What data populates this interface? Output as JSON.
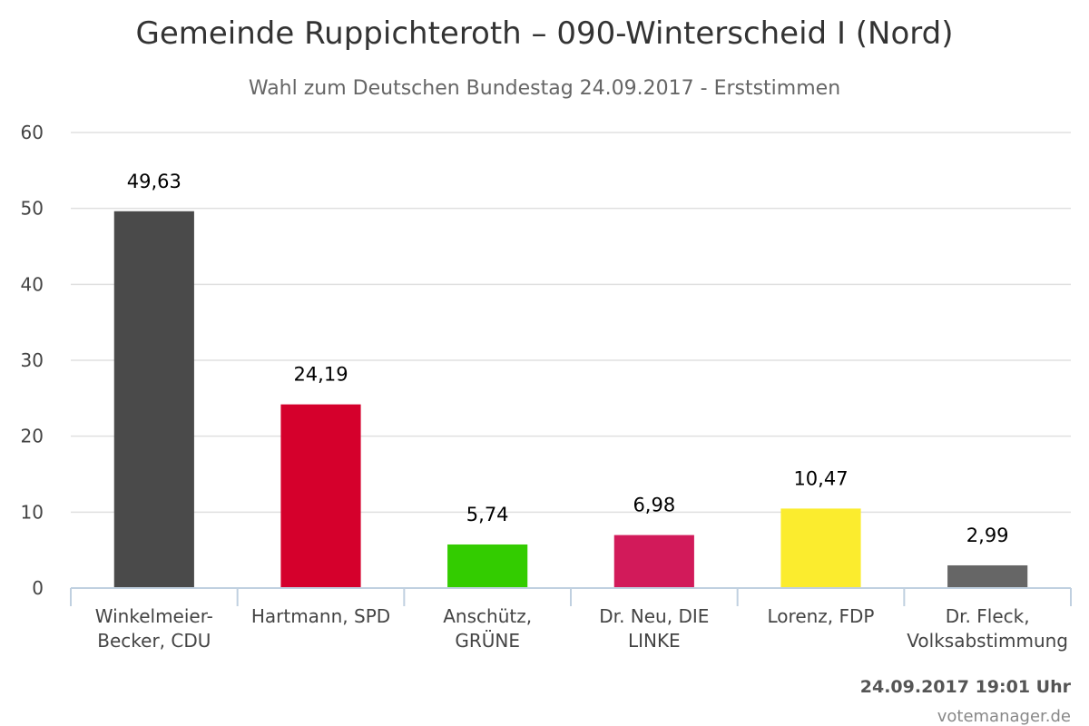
{
  "chart_data": {
    "type": "bar",
    "title": "Gemeinde Ruppichteroth – 090-Winterscheid I (Nord)",
    "subtitle": "Wahl zum Deutschen Bundestag 24.09.2017 - Erststimmen",
    "categories": [
      [
        "Winkelmeier-",
        "Becker, CDU"
      ],
      [
        "Hartmann, SPD"
      ],
      [
        "Anschütz,",
        "GRÜNE"
      ],
      [
        "Dr. Neu, DIE",
        "LINKE"
      ],
      [
        "Lorenz, FDP"
      ],
      [
        "Dr. Fleck,",
        "Volksabstimmung"
      ]
    ],
    "values": [
      49.63,
      24.19,
      5.74,
      6.98,
      10.47,
      2.99
    ],
    "value_labels": [
      "49,63",
      "24,19",
      "5,74",
      "6,98",
      "10,47",
      "2,99"
    ],
    "colors": [
      "#4a4a4a",
      "#d5002c",
      "#33cc00",
      "#d21a5a",
      "#fbec2e",
      "#666666"
    ],
    "ylim": [
      0,
      60
    ],
    "yticks": [
      "0",
      "10",
      "20",
      "30",
      "40",
      "50",
      "60"
    ],
    "xlabel": "",
    "ylabel": "",
    "grid": true,
    "legend": "none"
  },
  "footer": {
    "timestamp": "24.09.2017 19:01 Uhr",
    "credit": "votemanager.de"
  }
}
